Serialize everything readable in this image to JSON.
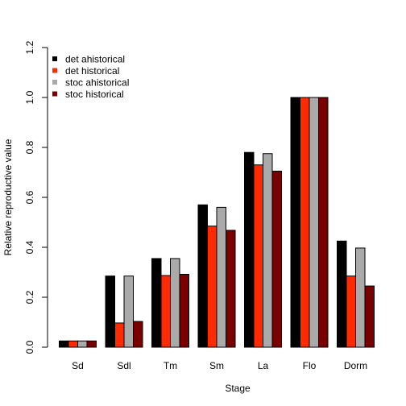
{
  "chart_data": {
    "type": "bar",
    "title": "",
    "xlabel": "Stage",
    "ylabel": "Relative reproductive value",
    "ylim": [
      0,
      1.2
    ],
    "yticks": [
      "0.0",
      "0.2",
      "0.4",
      "0.6",
      "0.8",
      "1.0",
      "1.2"
    ],
    "grid": false,
    "legend_position": "top-left",
    "categories": [
      "Sd",
      "Sdl",
      "Tm",
      "Sm",
      "La",
      "Flo",
      "Dorm"
    ],
    "series": [
      {
        "name": "det ahistorical",
        "color": "#000000",
        "values": [
          0.025,
          0.285,
          0.355,
          0.57,
          0.78,
          1.0,
          0.425
        ]
      },
      {
        "name": "det historical",
        "color": "#ff2a00",
        "values": [
          0.025,
          0.097,
          0.287,
          0.485,
          0.73,
          1.0,
          0.285
        ]
      },
      {
        "name": "stoc ahistorical",
        "color": "#aaaaaa",
        "values": [
          0.025,
          0.285,
          0.355,
          0.56,
          0.775,
          1.0,
          0.397
        ]
      },
      {
        "name": "stoc historical",
        "color": "#7a0000",
        "values": [
          0.025,
          0.103,
          0.292,
          0.468,
          0.705,
          1.0,
          0.245
        ]
      }
    ]
  }
}
